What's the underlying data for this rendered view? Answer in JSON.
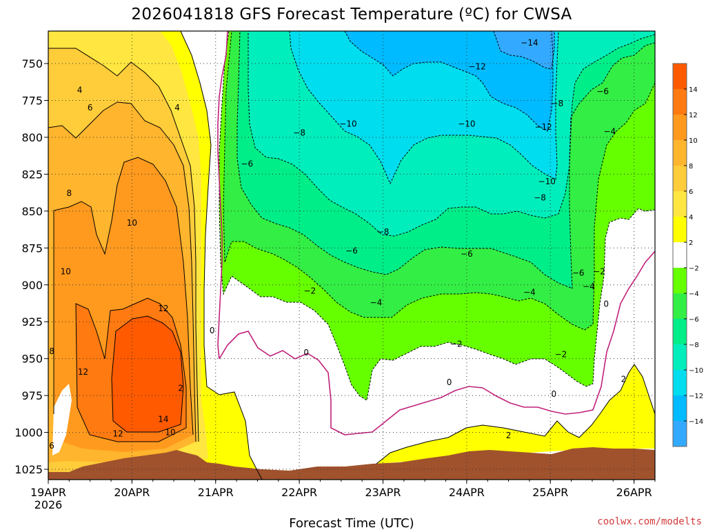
{
  "chart_data": {
    "type": "heatmap",
    "title": "2026041818 GFS Forecast Temperature (ºC) for CWSA",
    "xlabel": "Forecast Time (UTC)",
    "ylabel": "",
    "x_tick_labels": [
      "19APR",
      "20APR",
      "21APR",
      "22APR",
      "23APR",
      "24APR",
      "25APR",
      "26APR"
    ],
    "x_year_label": "2026",
    "x_range": [
      "2026-04-19T00",
      "2026-04-26T06"
    ],
    "x_ticks": [
      "2026-04-19T00",
      "2026-04-20T00",
      "2026-04-21T00",
      "2026-04-22T00",
      "2026-04-23T00",
      "2026-04-24T00",
      "2026-04-25T00",
      "2026-04-26T00"
    ],
    "y_tick_labels": [
      "750",
      "775",
      "800",
      "825",
      "850",
      "875",
      "900",
      "925",
      "950",
      "975",
      "1000",
      "1025"
    ],
    "y_ticks": [
      750,
      775,
      800,
      825,
      850,
      875,
      900,
      925,
      950,
      975,
      1000,
      1025
    ],
    "y_range": [
      728,
      1032
    ],
    "y_inverted": true,
    "grid": true,
    "colorbar": {
      "labels": [
        "14",
        "12",
        "10",
        "8",
        "6",
        "4",
        "2",
        "−2",
        "−4",
        "−6",
        "−8",
        "−10",
        "−12",
        "−14"
      ],
      "colors": [
        "#ff5a00",
        "#ff7a10",
        "#ff9a1f",
        "#ffb52d",
        "#ffcc3a",
        "#ffe640",
        "#ffff00",
        "#ffffff",
        "#66ff00",
        "#33ee44",
        "#00ee88",
        "#00eebb",
        "#00ddee",
        "#00bbff",
        "#33aaff"
      ],
      "position": "right"
    },
    "contour_labels": [
      {
        "text": "4",
        "x": "2026-04-19T09",
        "p": 768
      },
      {
        "text": "6",
        "x": "2026-04-19T12",
        "p": 780
      },
      {
        "text": "8",
        "x": "2026-04-19T06",
        "p": 838
      },
      {
        "text": "10",
        "x": "2026-04-20T00",
        "p": 858
      },
      {
        "text": "10",
        "x": "2026-04-19T05",
        "p": 891
      },
      {
        "text": "12",
        "x": "2026-04-20T09",
        "p": 916
      },
      {
        "text": "8",
        "x": "2026-04-19T01",
        "p": 945
      },
      {
        "text": "12",
        "x": "2026-04-19T10",
        "p": 959
      },
      {
        "text": "14",
        "x": "2026-04-20T09",
        "p": 991
      },
      {
        "text": "12",
        "x": "2026-04-19T20",
        "p": 1001
      },
      {
        "text": "10",
        "x": "2026-04-20T11",
        "p": 1000
      },
      {
        "text": "6",
        "x": "2026-04-19T01",
        "p": 1009
      },
      {
        "text": "4",
        "x": "2026-04-20T13",
        "p": 780
      },
      {
        "text": "2",
        "x": "2026-04-20T14",
        "p": 970
      },
      {
        "text": "0",
        "x": "2026-04-20T23",
        "p": 931
      },
      {
        "text": "−6",
        "x": "2026-04-21T09",
        "p": 818
      },
      {
        "text": "−8",
        "x": "2026-04-22T00",
        "p": 797
      },
      {
        "text": "−10",
        "x": "2026-04-22T14",
        "p": 791
      },
      {
        "text": "−12",
        "x": "2026-04-24T03",
        "p": 752
      },
      {
        "text": "−14",
        "x": "2026-04-24T18",
        "p": 736
      },
      {
        "text": "−10",
        "x": "2026-04-24T00",
        "p": 791
      },
      {
        "text": "−12",
        "x": "2026-04-24T22",
        "p": 793
      },
      {
        "text": "−10",
        "x": "2026-04-24T23",
        "p": 830
      },
      {
        "text": "−8",
        "x": "2026-04-24T21",
        "p": 841
      },
      {
        "text": "−8",
        "x": "2026-04-23T00",
        "p": 864
      },
      {
        "text": "−6",
        "x": "2026-04-22T15",
        "p": 877
      },
      {
        "text": "−6",
        "x": "2026-04-24T00",
        "p": 879
      },
      {
        "text": "−8",
        "x": "2026-04-25T02",
        "p": 777
      },
      {
        "text": "−6",
        "x": "2026-04-25T15",
        "p": 769
      },
      {
        "text": "−4",
        "x": "2026-04-25T17",
        "p": 796
      },
      {
        "text": "−6",
        "x": "2026-04-25T08",
        "p": 892
      },
      {
        "text": "−4",
        "x": "2026-04-25T11",
        "p": 901
      },
      {
        "text": "−2",
        "x": "2026-04-22T03",
        "p": 904
      },
      {
        "text": "−4",
        "x": "2026-04-22T22",
        "p": 912
      },
      {
        "text": "−4",
        "x": "2026-04-24T18",
        "p": 905
      },
      {
        "text": "−2",
        "x": "2026-04-23T21",
        "p": 940
      },
      {
        "text": "−2",
        "x": "2026-04-25T03",
        "p": 947
      },
      {
        "text": "−2",
        "x": "2026-04-25T14",
        "p": 891
      },
      {
        "text": "0",
        "x": "2026-04-22T02",
        "p": 946
      },
      {
        "text": "0",
        "x": "2026-04-23T19",
        "p": 966
      },
      {
        "text": "0",
        "x": "2026-04-25T01",
        "p": 974
      },
      {
        "text": "0",
        "x": "2026-04-25T16",
        "p": 913
      },
      {
        "text": "2",
        "x": "2026-04-24T12",
        "p": 1002
      },
      {
        "text": "2",
        "x": "2026-04-25T21",
        "p": 964
      }
    ]
  },
  "watermark": "coolwx.com/modelts"
}
